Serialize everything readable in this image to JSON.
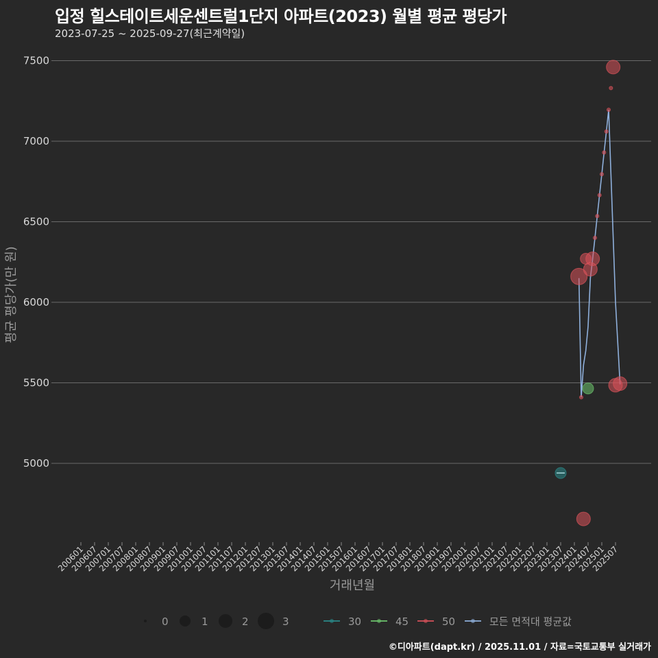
{
  "header": {
    "title": "입정 힐스테이트세운센트럴1단지 아파트(2023) 월별 평균 평당가",
    "subtitle": "2023-07-25 ~ 2025-09-27(최근계약일)"
  },
  "footer": {
    "credit": "©디아파트(dapt.kr) / 2025.11.01 / 자료=국토교통부 실거래가"
  },
  "colors": {
    "background": "#282828",
    "grid": "#6a6a6a",
    "area_30": "#2a8a8a",
    "area_45": "#6cc36c",
    "area_50": "#d9525a",
    "average_line": "#8fb0dc"
  },
  "legend": {
    "size_items": [
      {
        "label": "0",
        "r": 2
      },
      {
        "label": "1",
        "r": 8
      },
      {
        "label": "2",
        "r": 10
      },
      {
        "label": "3",
        "r": 12
      }
    ],
    "color_items": [
      {
        "label": "30",
        "color": "#2a8a8a"
      },
      {
        "label": "45",
        "color": "#6cc36c"
      },
      {
        "label": "50",
        "color": "#d9525a"
      },
      {
        "label": "모든 면적대 평균값",
        "color": "#8fb0dc"
      }
    ]
  },
  "chart_data": {
    "type": "scatter",
    "title": "입정 힐스테이트세운센트럴1단지 아파트(2023) 월별 평균 평당가",
    "subtitle": "2023-07-25 ~ 2025-09-27(최근계약일)",
    "xlabel": "거래년월",
    "ylabel": "평균 평당가(만 원)",
    "ylim": [
      4550,
      7650
    ],
    "yticks": [
      5000,
      5500,
      6000,
      6500,
      7000,
      7500
    ],
    "xticks": [
      "200601",
      "200607",
      "200701",
      "200707",
      "200801",
      "200807",
      "200901",
      "200907",
      "201001",
      "201007",
      "201101",
      "201107",
      "201201",
      "201207",
      "201301",
      "201307",
      "201401",
      "201407",
      "201501",
      "201507",
      "201601",
      "201607",
      "201701",
      "201707",
      "201801",
      "201807",
      "201901",
      "201907",
      "202001",
      "202007",
      "202101",
      "202107",
      "202201",
      "202207",
      "202301",
      "202307",
      "202401",
      "202407",
      "202501",
      "202507"
    ],
    "grid": true,
    "legend_position": "bottom",
    "series": [
      {
        "name": "30",
        "points": [
          {
            "x": "202307",
            "y": 4940,
            "size": 1
          }
        ]
      },
      {
        "name": "45",
        "points": [
          {
            "x": "202407",
            "y": 5465,
            "size": 1
          }
        ]
      },
      {
        "name": "50",
        "points": [
          {
            "x": "202403",
            "y": 6160,
            "size": 3
          },
          {
            "x": "202404",
            "y": 5410,
            "size": 0
          },
          {
            "x": "202405",
            "y": 4655,
            "size": 2
          },
          {
            "x": "202406",
            "y": 6270,
            "size": 1
          },
          {
            "x": "202408",
            "y": 6205,
            "size": 2
          },
          {
            "x": "202409",
            "y": 6270,
            "size": 2
          },
          {
            "x": "202410",
            "y": 6400,
            "size": 0
          },
          {
            "x": "202411",
            "y": 6535,
            "size": 0
          },
          {
            "x": "202412",
            "y": 6665,
            "size": 0
          },
          {
            "x": "202501",
            "y": 6795,
            "size": 0
          },
          {
            "x": "202502",
            "y": 6930,
            "size": 0
          },
          {
            "x": "202503",
            "y": 7060,
            "size": 0
          },
          {
            "x": "202504",
            "y": 7195,
            "size": 0
          },
          {
            "x": "202505",
            "y": 7330,
            "size": 0
          },
          {
            "x": "202506",
            "y": 7460,
            "size": 2
          },
          {
            "x": "202507",
            "y": 5485,
            "size": 2
          },
          {
            "x": "202509",
            "y": 5495,
            "size": 2
          }
        ]
      },
      {
        "name": "모든 면적대 평균값",
        "type": "line",
        "points": [
          {
            "x": "202307",
            "y": 4940
          },
          {
            "x": "202403",
            "y": 6150
          },
          {
            "x": "202404",
            "y": 5410
          },
          {
            "x": "202405",
            "y": 5610
          },
          {
            "x": "202406",
            "y": 5700
          },
          {
            "x": "202407",
            "y": 5850
          },
          {
            "x": "202408",
            "y": 6150
          },
          {
            "x": "202409",
            "y": 6270
          },
          {
            "x": "202410",
            "y": 6400
          },
          {
            "x": "202411",
            "y": 6535
          },
          {
            "x": "202412",
            "y": 6665
          },
          {
            "x": "202501",
            "y": 6795
          },
          {
            "x": "202502",
            "y": 6930
          },
          {
            "x": "202503",
            "y": 7060
          },
          {
            "x": "202504",
            "y": 7195
          },
          {
            "x": "202507",
            "y": 6000
          },
          {
            "x": "202509",
            "y": 5490
          }
        ]
      }
    ]
  }
}
